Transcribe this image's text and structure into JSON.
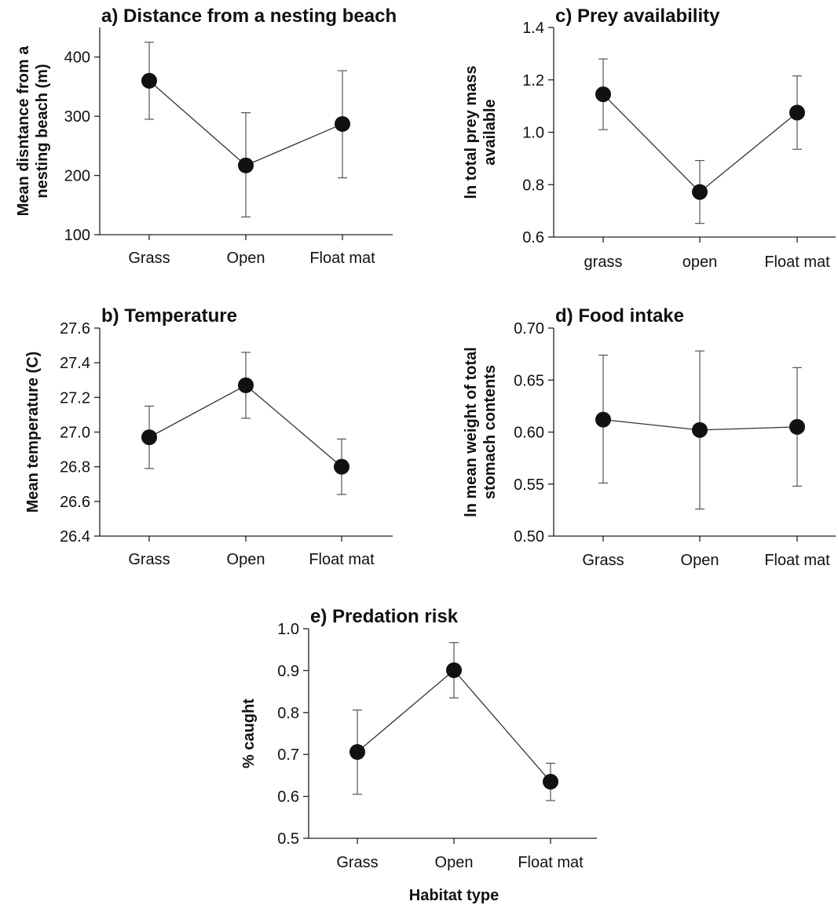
{
  "chart_data": [
    {
      "type": "line",
      "title": "a) Distance from a nesting beach",
      "ylabel": [
        "Mean disntance from a",
        "nesting beach (m)"
      ],
      "xlabel": "",
      "categories": [
        "Grass",
        "Open",
        "Float mat"
      ],
      "values": [
        360,
        217,
        287
      ],
      "error": [
        [
          295,
          425
        ],
        [
          130,
          306
        ],
        [
          196,
          377
        ]
      ],
      "ylim": [
        100,
        450
      ],
      "yticks": [
        "100",
        "200",
        "300",
        "400"
      ],
      "grid": false
    },
    {
      "type": "line",
      "title": "b) Temperature",
      "ylabel": [
        "Mean temperature (C)"
      ],
      "xlabel": "",
      "categories": [
        "Grass",
        "Open",
        "Float mat"
      ],
      "values": [
        26.97,
        27.27,
        26.8
      ],
      "error": [
        [
          26.79,
          27.15
        ],
        [
          27.08,
          27.46
        ],
        [
          26.64,
          26.96
        ]
      ],
      "ylim": [
        26.4,
        27.6
      ],
      "yticks": [
        "26.4",
        "26.6",
        "26.8",
        "27.0",
        "27.2",
        "27.4",
        "27.6"
      ],
      "grid": false
    },
    {
      "type": "line",
      "title": "c) Prey availability",
      "ylabel": [
        "ln total prey mass",
        "available"
      ],
      "xlabel": "",
      "categories": [
        "grass",
        "open",
        "Float mat"
      ],
      "values": [
        1.145,
        0.772,
        1.075
      ],
      "error": [
        [
          1.01,
          1.28
        ],
        [
          0.652,
          0.892
        ],
        [
          0.935,
          1.215
        ]
      ],
      "ylim": [
        0.6,
        1.4
      ],
      "yticks": [
        "0.6",
        "0.8",
        "1.0",
        "1.2",
        "1.4"
      ],
      "grid": false
    },
    {
      "type": "line",
      "title": "d) Food intake",
      "ylabel": [
        "ln mean weight of total",
        "stomach contents"
      ],
      "xlabel": "",
      "categories": [
        "Grass",
        "Open",
        "Float mat"
      ],
      "values": [
        0.612,
        0.602,
        0.605
      ],
      "error": [
        [
          0.551,
          0.674
        ],
        [
          0.526,
          0.678
        ],
        [
          0.548,
          0.662
        ]
      ],
      "ylim": [
        0.5,
        0.7
      ],
      "yticks": [
        "0.50",
        "0.55",
        "0.60",
        "0.65",
        "0.70"
      ],
      "grid": false
    },
    {
      "type": "line",
      "title": "e) Predation risk",
      "ylabel": [
        "% caught"
      ],
      "xlabel": "Habitat type",
      "categories": [
        "Grass",
        "Open",
        "Float mat"
      ],
      "values": [
        0.706,
        0.901,
        0.635
      ],
      "error": [
        [
          0.605,
          0.806
        ],
        [
          0.835,
          0.967
        ],
        [
          0.59,
          0.679
        ]
      ],
      "ylim": [
        0.5,
        1.0
      ],
      "yticks": [
        "0.5",
        "0.6",
        "0.7",
        "0.8",
        "0.9",
        "1.0"
      ],
      "grid": false
    }
  ]
}
